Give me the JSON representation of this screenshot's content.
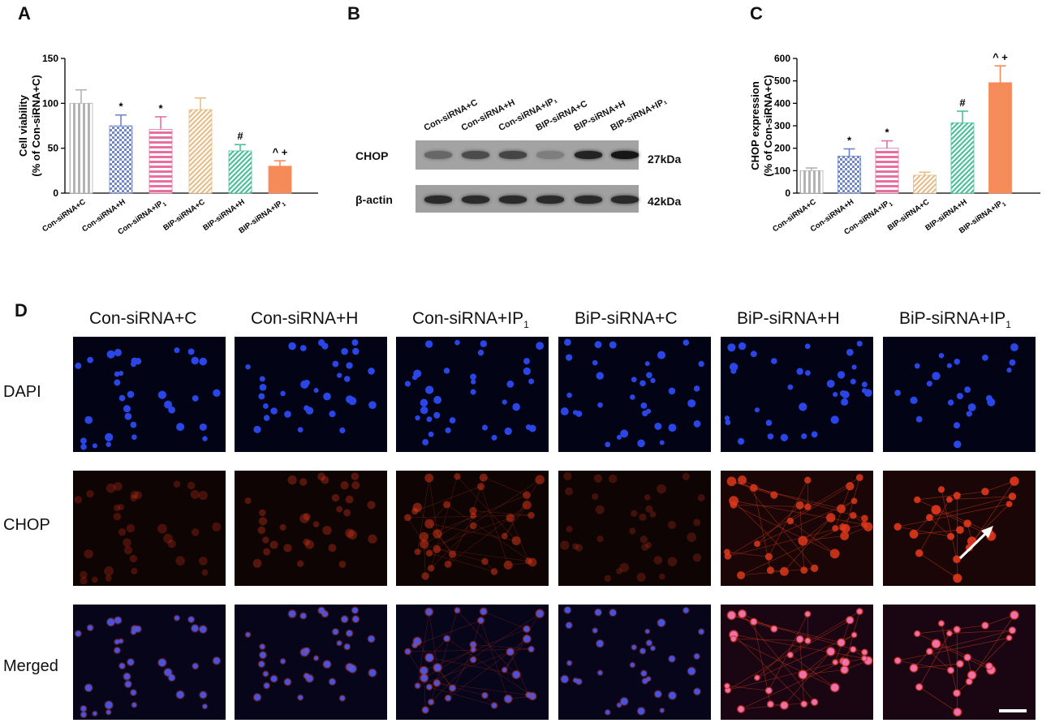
{
  "panel_labels": {
    "a": "A",
    "b": "B",
    "c": "C",
    "d": "D"
  },
  "chart_data": [
    {
      "type": "bar",
      "panel": "A",
      "categories": [
        "Con-siRNA+C",
        "Con-siRNA+H",
        "Con-siRNA+IP1",
        "BIP-siRNA+C",
        "BIP-siRNA+H",
        "BIP-siRNA+IP1"
      ],
      "values": [
        100,
        75,
        71,
        93,
        47,
        30
      ],
      "errors": [
        15,
        12,
        14,
        13,
        7,
        6
      ],
      "annotations": [
        "",
        "*",
        "*",
        "",
        "#",
        "^ +"
      ],
      "ylabel": "Cell viability\n(% of Con-siRNA+C)",
      "ylim": [
        0,
        150
      ],
      "yticks": [
        0,
        50,
        100,
        150
      ],
      "colors": [
        "#b3b3b3",
        "#6f86c9",
        "#e8709f",
        "#e7be8a",
        "#4dbf9a",
        "#f68b5a"
      ],
      "patterns": [
        "vline",
        "check",
        "hline",
        "diag",
        "diag",
        "solid"
      ]
    },
    {
      "type": "bar",
      "panel": "C",
      "categories": [
        "Con-siRNA+C",
        "Con-siRNA+H",
        "Con-siRNA+IP1",
        "BIP-siRNA+C",
        "BIP-siRNA+H",
        "BIP-siRNA+IP1"
      ],
      "values": [
        100,
        165,
        200,
        80,
        313,
        492
      ],
      "errors": [
        12,
        32,
        33,
        13,
        52,
        75
      ],
      "annotations": [
        "",
        "*",
        "*",
        "",
        "#",
        "^ +"
      ],
      "ylabel": "CHOP expression\n(% of Con-siRNA+C)",
      "ylim": [
        0,
        600
      ],
      "yticks": [
        0,
        100,
        200,
        300,
        400,
        500,
        600
      ],
      "colors": [
        "#b3b3b3",
        "#6f86c9",
        "#e8709f",
        "#e7be8a",
        "#4dbf9a",
        "#f68b5a"
      ],
      "patterns": [
        "vline",
        "check",
        "hline",
        "diag",
        "diag",
        "solid"
      ]
    }
  ],
  "western_blot": {
    "lanes": [
      "Con-siRNA+C",
      "Con-siRNA+H",
      "Con-siRNA+IP₁",
      "BIP-siRNA+C",
      "BIP-siRNA+H",
      "BIP-siRNA+IP₁"
    ],
    "rows": [
      {
        "label": "CHOP",
        "size": "27kDa",
        "intensity": [
          0.35,
          0.55,
          0.6,
          0.18,
          0.85,
          0.95
        ]
      },
      {
        "label": "β-actin",
        "size": "42kDa",
        "intensity": [
          0.8,
          0.8,
          0.8,
          0.8,
          0.8,
          0.8
        ]
      }
    ]
  },
  "microscopy": {
    "columns": [
      "Con-siRNA+C",
      "Con-siRNA+H",
      "Con-siRNA+IP",
      "BiP-siRNA+C",
      "BiP-siRNA+H",
      "BiP-siRNA+IP"
    ],
    "column_subscripts": [
      "",
      "",
      "1",
      "",
      "",
      "1"
    ],
    "rows": [
      "DAPI",
      "CHOP",
      "Merged"
    ]
  }
}
